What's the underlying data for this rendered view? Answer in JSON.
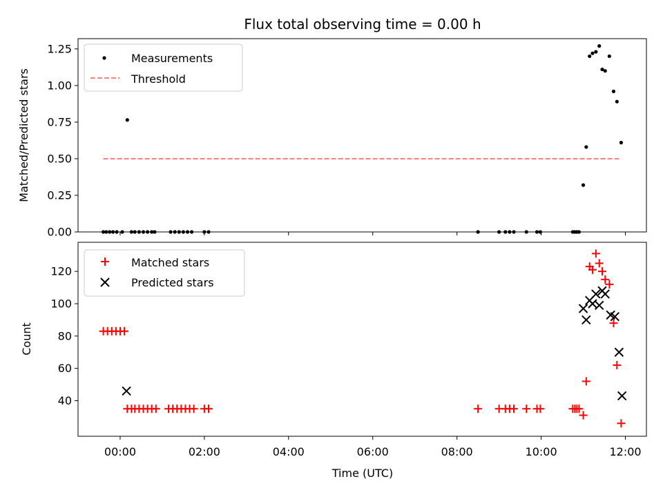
{
  "chart_data": [
    {
      "type": "scatter",
      "title": "Flux total observing time = 0.00 h",
      "ylabel": "Matched/Predicted stars",
      "xlabel": "",
      "xlim": [
        -1.0,
        12.5
      ],
      "ylim": [
        0.0,
        1.32
      ],
      "x_unit": "hours (UTC)",
      "yticks": [
        "0.00",
        "0.25",
        "0.50",
        "0.75",
        "1.00",
        "1.25"
      ],
      "ytick_values": [
        0.0,
        0.25,
        0.5,
        0.75,
        1.0,
        1.25
      ],
      "legend_position": "upper-left",
      "series": [
        {
          "name": "Measurements",
          "marker": "dot",
          "color": "#000000",
          "points": [
            [
              -0.4,
              0
            ],
            [
              -0.33,
              0
            ],
            [
              -0.25,
              0
            ],
            [
              -0.17,
              0
            ],
            [
              -0.08,
              0
            ],
            [
              0.05,
              0
            ],
            [
              0.17,
              0.765
            ],
            [
              0.27,
              0
            ],
            [
              0.35,
              0
            ],
            [
              0.45,
              0
            ],
            [
              0.55,
              0
            ],
            [
              0.65,
              0
            ],
            [
              0.75,
              0
            ],
            [
              0.82,
              0
            ],
            [
              1.2,
              0
            ],
            [
              1.3,
              0
            ],
            [
              1.4,
              0
            ],
            [
              1.5,
              0
            ],
            [
              1.6,
              0
            ],
            [
              1.7,
              0
            ],
            [
              2.0,
              0
            ],
            [
              2.1,
              0
            ],
            [
              8.5,
              0
            ],
            [
              9.0,
              0
            ],
            [
              9.15,
              0
            ],
            [
              9.25,
              0
            ],
            [
              9.35,
              0
            ],
            [
              9.65,
              0
            ],
            [
              9.9,
              0
            ],
            [
              9.98,
              0
            ],
            [
              10.75,
              0
            ],
            [
              10.8,
              0
            ],
            [
              10.85,
              0
            ],
            [
              10.9,
              0
            ],
            [
              11.0,
              0.32
            ],
            [
              11.07,
              0.58
            ],
            [
              11.15,
              1.2
            ],
            [
              11.22,
              1.22
            ],
            [
              11.3,
              1.23
            ],
            [
              11.38,
              1.27
            ],
            [
              11.45,
              1.11
            ],
            [
              11.52,
              1.1
            ],
            [
              11.62,
              1.2
            ],
            [
              11.72,
              0.96
            ],
            [
              11.8,
              0.89
            ],
            [
              11.9,
              0.61
            ]
          ]
        },
        {
          "name": "Threshold",
          "line_style": "dashed",
          "color": "#ff7f7f",
          "points": [
            [
              -0.4,
              0.5
            ],
            [
              11.9,
              0.5
            ]
          ]
        }
      ]
    },
    {
      "type": "scatter",
      "title": "",
      "ylabel": "Count",
      "xlabel": "Time (UTC)",
      "xlim": [
        -1.0,
        12.5
      ],
      "ylim": [
        18,
        138
      ],
      "x_unit": "hours (UTC)",
      "yticks": [
        "40",
        "60",
        "80",
        "100",
        "120"
      ],
      "ytick_values": [
        40,
        60,
        80,
        100,
        120
      ],
      "xticks": [
        "00:00",
        "02:00",
        "04:00",
        "06:00",
        "08:00",
        "10:00",
        "12:00"
      ],
      "xtick_values": [
        0,
        2,
        4,
        6,
        8,
        10,
        12
      ],
      "legend_position": "upper-left",
      "series": [
        {
          "name": "Matched stars",
          "marker": "plus",
          "color": "#ff0000",
          "points": [
            [
              -0.4,
              83
            ],
            [
              -0.3,
              83
            ],
            [
              -0.2,
              83
            ],
            [
              -0.1,
              83
            ],
            [
              0.0,
              83
            ],
            [
              0.1,
              83
            ],
            [
              0.17,
              35
            ],
            [
              0.27,
              35
            ],
            [
              0.35,
              35
            ],
            [
              0.45,
              35
            ],
            [
              0.55,
              35
            ],
            [
              0.65,
              35
            ],
            [
              0.75,
              35
            ],
            [
              0.85,
              35
            ],
            [
              1.15,
              35
            ],
            [
              1.25,
              35
            ],
            [
              1.35,
              35
            ],
            [
              1.45,
              35
            ],
            [
              1.55,
              35
            ],
            [
              1.65,
              35
            ],
            [
              1.75,
              35
            ],
            [
              2.0,
              35
            ],
            [
              2.1,
              35
            ],
            [
              8.5,
              35
            ],
            [
              9.0,
              35
            ],
            [
              9.15,
              35
            ],
            [
              9.25,
              35
            ],
            [
              9.35,
              35
            ],
            [
              9.65,
              35
            ],
            [
              9.9,
              35
            ],
            [
              9.98,
              35
            ],
            [
              10.75,
              35
            ],
            [
              10.8,
              35
            ],
            [
              10.85,
              35
            ],
            [
              10.9,
              35
            ],
            [
              11.0,
              31
            ],
            [
              11.07,
              52
            ],
            [
              11.15,
              123
            ],
            [
              11.22,
              121
            ],
            [
              11.3,
              131
            ],
            [
              11.38,
              125
            ],
            [
              11.45,
              120
            ],
            [
              11.52,
              115
            ],
            [
              11.62,
              112
            ],
            [
              11.72,
              88
            ],
            [
              11.8,
              62
            ],
            [
              11.9,
              26
            ]
          ]
        },
        {
          "name": "Predicted stars",
          "marker": "x",
          "color": "#000000",
          "points": [
            [
              0.15,
              46
            ],
            [
              11.0,
              97
            ],
            [
              11.07,
              90
            ],
            [
              11.15,
              102
            ],
            [
              11.22,
              100
            ],
            [
              11.3,
              106
            ],
            [
              11.38,
              99
            ],
            [
              11.45,
              108
            ],
            [
              11.52,
              106
            ],
            [
              11.65,
              93
            ],
            [
              11.75,
              92
            ],
            [
              11.85,
              70
            ],
            [
              11.92,
              43
            ]
          ]
        }
      ]
    }
  ]
}
